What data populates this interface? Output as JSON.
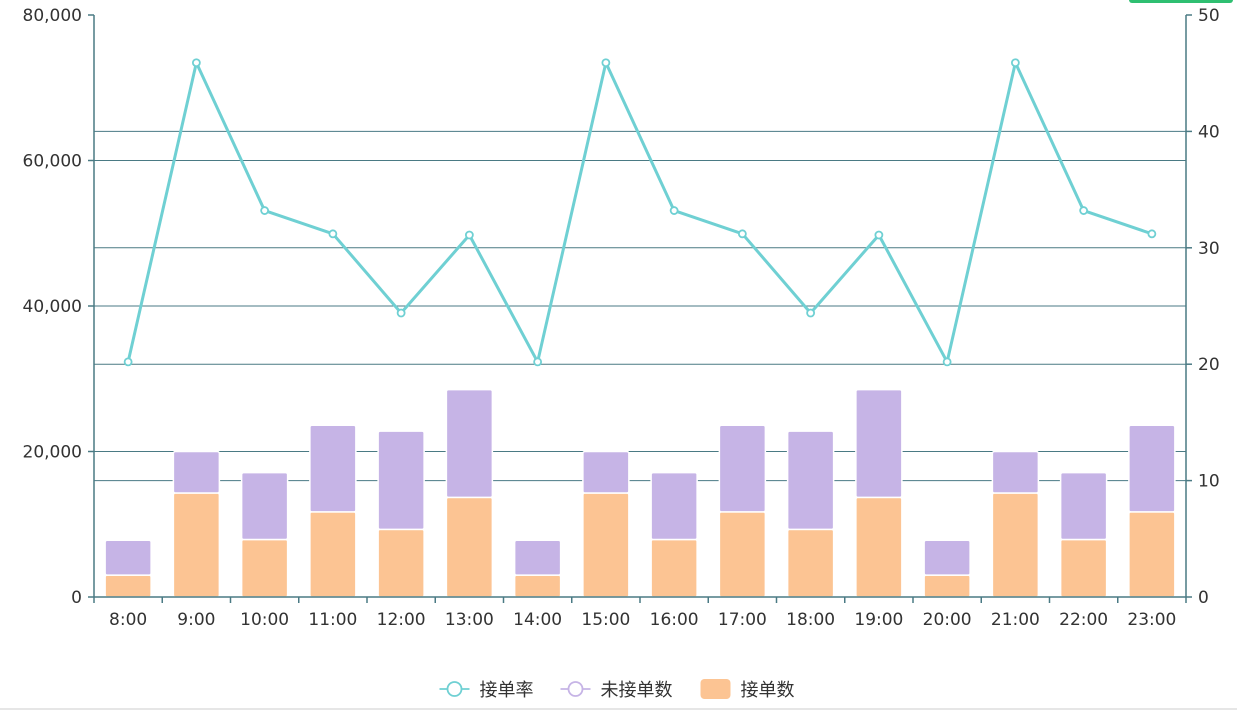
{
  "chart_data": {
    "type": "bar",
    "categories": [
      "8:00",
      "9:00",
      "10:00",
      "11:00",
      "12:00",
      "13:00",
      "14:00",
      "15:00",
      "16:00",
      "17:00",
      "18:00",
      "19:00",
      "20:00",
      "21:00",
      "22:00",
      "23:00"
    ],
    "series": [
      {
        "name": "接单数",
        "chart_type": "bar",
        "stack": "orders",
        "axis": "left",
        "color": "#fcc493",
        "values": [
          3000,
          14300,
          7900,
          11700,
          9300,
          13700,
          3000,
          14300,
          7900,
          11700,
          9300,
          13700,
          3000,
          14300,
          7900,
          11700
        ]
      },
      {
        "name": "未接单数",
        "chart_type": "bar",
        "stack": "orders",
        "axis": "left",
        "color": "#c6b4e6",
        "values": [
          4800,
          5700,
          9200,
          11900,
          13500,
          14800,
          4800,
          5700,
          9200,
          11900,
          13500,
          14800,
          4800,
          5700,
          9200,
          11900
        ]
      },
      {
        "name": "接单率",
        "chart_type": "line",
        "axis": "right",
        "color": "#6fd0d3",
        "values": [
          20.2,
          45.9,
          33.2,
          31.2,
          24.4,
          31.1,
          20.2,
          45.9,
          33.2,
          31.2,
          24.4,
          31.1,
          20.2,
          45.9,
          33.2,
          31.2
        ]
      }
    ],
    "y_left": {
      "min": 0,
      "max": 80000,
      "ticks": [
        "0",
        "20,000",
        "40,000",
        "60,000",
        "80,000"
      ]
    },
    "y_right": {
      "min": 0,
      "max": 50,
      "ticks": [
        "0",
        "10",
        "20",
        "30",
        "40",
        "50"
      ]
    },
    "grid": true,
    "legend_position": "bottom-center",
    "legend": [
      {
        "label": "接单率",
        "symbol": "line-circle",
        "color": "#6fd0d3"
      },
      {
        "label": "未接单数",
        "symbol": "line-circle",
        "color": "#c6b4e6"
      },
      {
        "label": "接单数",
        "symbol": "rect",
        "color": "#fcc493"
      }
    ]
  },
  "colors": {
    "axis": "#4a7a84",
    "grid": "#4a7a84",
    "text": "#333333"
  }
}
